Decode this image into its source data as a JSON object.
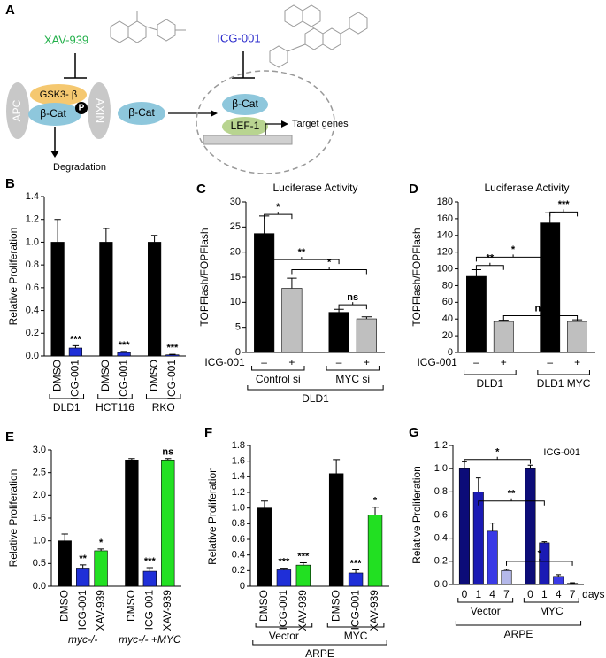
{
  "diagram": {
    "panel": "A",
    "xav": "XAV-939",
    "icg": "ICG-001",
    "apc": "APC",
    "gsk": "GSK3- β",
    "bcat_complex": "β-Cat",
    "p": "P",
    "axin": "AXIN",
    "degradation": "Degradation",
    "bcat_free": "β-Cat",
    "bcat_nucleus": "β-Cat",
    "lef": "LEF-1",
    "target": "Target genes"
  },
  "chart_data": [
    {
      "type": "bar",
      "panel": "B",
      "ylabel": "Relative Proliferation",
      "ylim": [
        0,
        1.4
      ],
      "yticks": [
        {
          "value": 0,
          "label": "0.0"
        },
        0.2,
        0.4,
        0.6,
        0.8,
        {
          "value": 1,
          "label": "1.0"
        },
        1.2,
        1.4
      ],
      "bar_labels": [
        "DMSO",
        "ICG-001",
        "DMSO",
        "ICG-001",
        "DMSO",
        "ICG-001"
      ],
      "values": [
        1.0,
        0.07,
        1.0,
        0.03,
        1.0,
        0.01
      ],
      "errors": [
        0.2,
        0.02,
        0.12,
        0.01,
        0.06,
        0.005
      ],
      "colors": [
        "#000000",
        "#1f2fd8",
        "#000000",
        "#1f2fd8",
        "#000000",
        "#1f2fd8"
      ],
      "sig": [
        null,
        "***",
        null,
        "***",
        null,
        "***"
      ],
      "groups": [
        "DLD1",
        "HCT116",
        "RKO"
      ],
      "group_brackets": true,
      "rotate_labels": true
    },
    {
      "type": "bar",
      "panel": "C",
      "title": "Luciferase Activity",
      "ylabel": "TOPFlash/FOPFlash",
      "ylim": [
        0,
        30
      ],
      "yticks": [
        0,
        5,
        10,
        15,
        20,
        25,
        30
      ],
      "row_label": "ICG-001",
      "bar_labels": [
        "–",
        "+",
        "–",
        "+"
      ],
      "values": [
        23.7,
        12.8,
        8.0,
        6.7
      ],
      "errors": [
        3.5,
        2.0,
        0.6,
        0.4
      ],
      "colors": [
        "#000000",
        "#bfbfbf",
        "#000000",
        "#bfbfbf"
      ],
      "groups": [
        "Control si",
        "MYC si"
      ],
      "group_brackets": true,
      "supergroup": "DLD1",
      "brackets": [
        "*",
        "**",
        "*",
        "ns"
      ]
    },
    {
      "type": "bar",
      "panel": "D",
      "title": "Luciferase Activity",
      "ylabel": "TOPFlash/FOPFlash",
      "ylim": [
        0,
        180
      ],
      "yticks": [
        0,
        20,
        40,
        60,
        80,
        100,
        120,
        140,
        160,
        180
      ],
      "row_label": "ICG-001",
      "bar_labels": [
        "–",
        "+",
        "–",
        "+"
      ],
      "values": [
        91,
        37,
        155,
        37
      ],
      "errors": [
        8,
        1.5,
        12,
        2
      ],
      "colors": [
        "#000000",
        "#bfbfbf",
        "#000000",
        "#bfbfbf"
      ],
      "groups": [
        "DLD1",
        "DLD1 MYC"
      ],
      "group_brackets": true,
      "brackets": [
        "**",
        "*",
        "***",
        "ns"
      ]
    },
    {
      "type": "bar",
      "panel": "E",
      "ylabel": "Relative Proliferation",
      "ylim": [
        0,
        3
      ],
      "yticks": [
        {
          "value": 0,
          "label": "0.0"
        },
        0.5,
        {
          "value": 1,
          "label": "1.0"
        },
        1.5,
        {
          "value": 2,
          "label": "2.0"
        },
        2.5,
        {
          "value": 3,
          "label": "3.0"
        }
      ],
      "bar_labels": [
        "DMSO",
        "ICG-001",
        "XAV-939",
        "DMSO",
        "ICG-001",
        "XAV-939"
      ],
      "values": [
        1.0,
        0.4,
        0.78,
        2.78,
        0.33,
        2.78
      ],
      "errors": [
        0.15,
        0.07,
        0.04,
        0.03,
        0.08,
        0.03
      ],
      "colors": [
        "#000000",
        "#1f2fd8",
        "#22e022",
        "#000000",
        "#1f2fd8",
        "#22e022"
      ],
      "sig": [
        null,
        "**",
        "*",
        null,
        "***",
        "ns"
      ],
      "groups": [
        "myc-/-",
        "myc-/- +MYC"
      ],
      "group_brackets": false,
      "italic_groups": true,
      "rotate_labels": true
    },
    {
      "type": "bar",
      "panel": "F",
      "ylabel": "Relative Proliferation",
      "ylim": [
        0,
        1.8
      ],
      "yticks": [
        0,
        0.2,
        0.4,
        0.6,
        0.8,
        {
          "value": 1,
          "label": "1.0"
        },
        1.2,
        1.4,
        1.6,
        1.8
      ],
      "bar_labels": [
        "DMSO",
        "ICG-001",
        "XAV-939",
        "DMSO",
        "ICG-001",
        "XAV-939"
      ],
      "values": [
        1.0,
        0.21,
        0.27,
        1.44,
        0.17,
        0.91
      ],
      "errors": [
        0.09,
        0.02,
        0.03,
        0.18,
        0.04,
        0.1
      ],
      "colors": [
        "#000000",
        "#1f2fd8",
        "#22e022",
        "#000000",
        "#1f2fd8",
        "#22e022"
      ],
      "sig": [
        null,
        "***",
        "***",
        null,
        "***",
        "*"
      ],
      "groups": [
        "Vector",
        "MYC"
      ],
      "group_brackets": true,
      "supergroup": "ARPE",
      "rotate_labels": true
    },
    {
      "type": "bar",
      "panel": "G",
      "annotation": "ICG-001",
      "ylabel": "Relative Proliferation",
      "ylim": [
        0,
        1.2
      ],
      "yticks": [
        {
          "value": 0,
          "label": "0.0"
        },
        0.2,
        0.4,
        0.6,
        0.8,
        {
          "value": 1,
          "label": "1.0"
        },
        1.2
      ],
      "bar_labels": [
        "0",
        "1",
        "4",
        "7",
        "0",
        "1",
        "4",
        "7"
      ],
      "x_unit": "days",
      "values": [
        1.0,
        0.8,
        0.46,
        0.12,
        1.0,
        0.36,
        0.07,
        0.01
      ],
      "errors": [
        0.06,
        0.12,
        0.07,
        0.01,
        0.03,
        0.01,
        0.015,
        0.005
      ],
      "colors": [
        "#0c0c78",
        "#1a1ab4",
        "#3a3ae6",
        "#b4b8ea",
        "#0c0c78",
        "#1a1ab4",
        "#3a3ae6",
        "#b4b8ea"
      ],
      "groups": [
        "Vector",
        "MYC"
      ],
      "group_brackets": true,
      "supergroup": "ARPE",
      "brackets": [
        "*",
        "**",
        "*"
      ]
    }
  ]
}
